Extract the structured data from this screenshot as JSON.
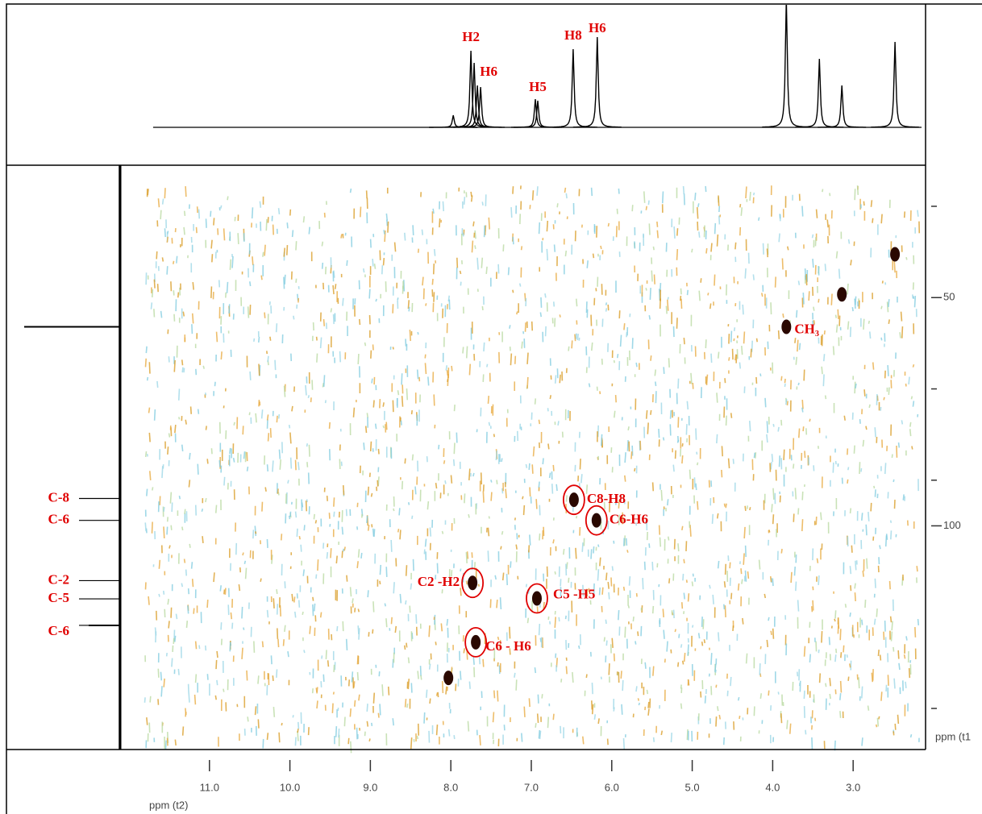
{
  "chart_data": {
    "type": "hsqc",
    "x_label": "ppm (t2)",
    "y_label": "ppm (t1",
    "xlim": [
      12.1,
      2.1
    ],
    "xticks": [
      {
        "value": 11,
        "label": "11.0"
      },
      {
        "value": 10,
        "label": "10.0"
      },
      {
        "value": 9,
        "label": "9.0"
      },
      {
        "value": 8,
        "label": "8.0"
      },
      {
        "value": 7,
        "label": "7.0"
      },
      {
        "value": 6,
        "label": "6.0"
      },
      {
        "value": 5,
        "label": "5.0"
      },
      {
        "value": 4,
        "label": "4.0"
      },
      {
        "value": 3,
        "label": "3.0"
      }
    ],
    "ylim": [
      21,
      149
    ],
    "yticks": [
      50,
      100
    ],
    "yticks_minor": [
      30,
      70,
      90,
      140
    ],
    "cross_peaks": {
      "x": [
        6.47,
        6.19,
        7.73,
        6.93,
        7.69,
        3.83,
        3.14,
        8.03,
        2.48
      ],
      "y": [
        94.3,
        98.8,
        112.5,
        115.9,
        125.5,
        56.4,
        49.3,
        133.3,
        40.5
      ],
      "labels": [
        "C8-H8",
        "C6-H6",
        "C2 -H2",
        "C5 -H5",
        "C6 - H6",
        "CH₃",
        null,
        null,
        null
      ]
    },
    "proton": {
      "ylim": [
        0,
        100
      ],
      "peaks": [
        {
          "ppm": 7.97,
          "height": 15,
          "label": null
        },
        {
          "ppm": 7.75,
          "height": 95,
          "label": "H2"
        },
        {
          "ppm": 7.71,
          "height": 80,
          "label": null
        },
        {
          "ppm": 7.67,
          "height": 52,
          "label": "H6"
        },
        {
          "ppm": 7.63,
          "height": 50,
          "label": null
        },
        {
          "ppm": 6.95,
          "height": 35,
          "label": null
        },
        {
          "ppm": 6.92,
          "height": 33,
          "label": "H5"
        },
        {
          "ppm": 6.48,
          "height": 97,
          "label": "H8"
        },
        {
          "ppm": 6.18,
          "height": 112,
          "label": "H6"
        },
        {
          "ppm": 3.83,
          "height": 160,
          "label": null
        },
        {
          "ppm": 3.42,
          "height": 85,
          "label": null
        },
        {
          "ppm": 3.14,
          "height": 52,
          "label": null
        },
        {
          "ppm": 2.48,
          "height": 106,
          "label": null
        }
      ]
    },
    "carbon": {
      "peaks": [
        {
          "ppm": 56.4,
          "height": 118
        },
        {
          "ppm": 121.8,
          "height": 38
        }
      ],
      "labels": [
        {
          "text": "C-8",
          "ppm": 94
        },
        {
          "text": "C-6",
          "ppm": 98.8
        },
        {
          "text": "C-2",
          "ppm": 112
        },
        {
          "text": "C-5",
          "ppm": 116
        },
        {
          "text": "C-6",
          "ppm": 121.8
        }
      ]
    }
  }
}
